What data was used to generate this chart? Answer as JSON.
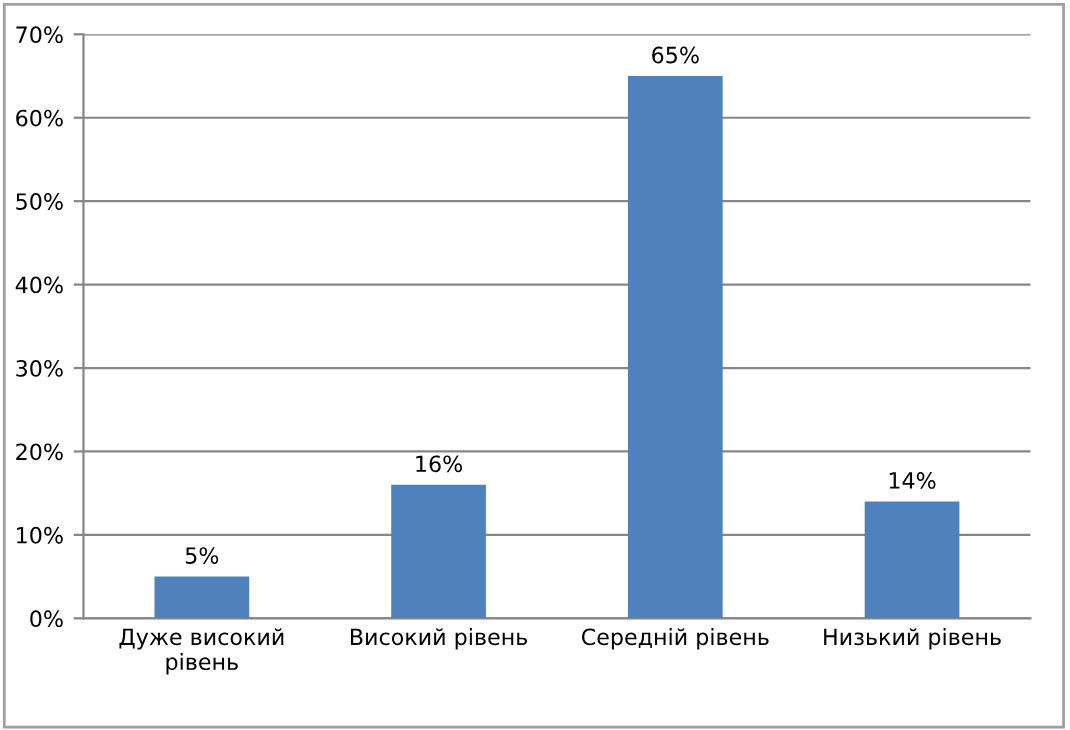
{
  "chart_data": {
    "type": "bar",
    "categories": [
      "Дуже високий\nрівень",
      "Високий рівень",
      "Середній рівень",
      "Низький рівень"
    ],
    "values": [
      5,
      16,
      65,
      14
    ],
    "value_labels": [
      "5%",
      "16%",
      "65%",
      "14%"
    ],
    "color": "#4f81bd",
    "ylim": [
      0,
      70
    ],
    "yticks": [
      {
        "value": 0,
        "label": "0%"
      },
      {
        "value": 10,
        "label": "10%"
      },
      {
        "value": 20,
        "label": "20%"
      },
      {
        "value": 30,
        "label": "30%"
      },
      {
        "value": 40,
        "label": "40%"
      },
      {
        "value": 50,
        "label": "50%"
      },
      {
        "value": 60,
        "label": "60%"
      },
      {
        "value": 70,
        "label": "70%"
      }
    ],
    "grid": "y",
    "legend": false
  }
}
